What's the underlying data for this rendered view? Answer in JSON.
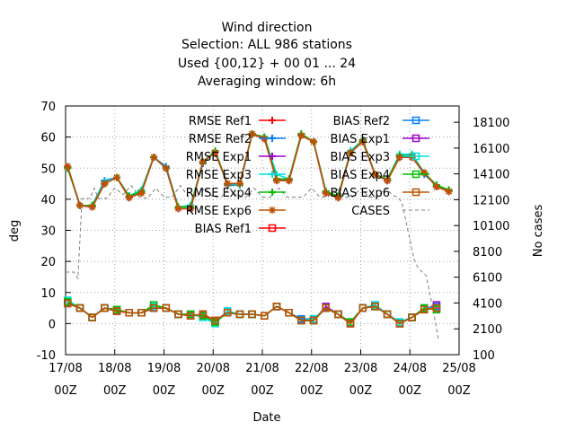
{
  "chart_data": {
    "type": "line",
    "title": [
      "Wind direction",
      "Selection: ALL    986 stations",
      "Used {00,12} + 00 01 ... 24",
      "Averaging window:  6h"
    ],
    "xlabel": "Date",
    "ylabel": "deg",
    "y2label": "No cases",
    "x_ticks": [
      {
        "x": 0,
        "lines": [
          "17/08",
          "00Z"
        ]
      },
      {
        "x": 24,
        "lines": [
          "18/08",
          "00Z"
        ]
      },
      {
        "x": 48,
        "lines": [
          "19/08",
          "00Z"
        ]
      },
      {
        "x": 72,
        "lines": [
          "20/08",
          "00Z"
        ]
      },
      {
        "x": 96,
        "lines": [
          "21/08",
          "00Z"
        ]
      },
      {
        "x": 120,
        "lines": [
          "22/08",
          "00Z"
        ]
      },
      {
        "x": 144,
        "lines": [
          "23/08",
          "00Z"
        ]
      },
      {
        "x": 168,
        "lines": [
          "24/08",
          "00Z"
        ]
      },
      {
        "x": 192,
        "lines": [
          "25/08",
          "00Z"
        ]
      }
    ],
    "x_unit": "hours since 17/08 00Z",
    "xlim": [
      0,
      192
    ],
    "ylim": [
      -10,
      70
    ],
    "y_ticks": [
      -10,
      0,
      10,
      20,
      30,
      40,
      50,
      60,
      70
    ],
    "y2lim": [
      100,
      19360
    ],
    "y2_ticks": [
      100,
      2100,
      4100,
      6100,
      8100,
      10100,
      12100,
      14100,
      16100,
      18100
    ],
    "grid": true,
    "legend_position": "top inside, two columns",
    "series": [
      {
        "name": "RMSE Ref1",
        "color": "#ff0000",
        "marker": "plus",
        "group": "rmse",
        "values": [
          50.5,
          38,
          37.5,
          45,
          47,
          40.5,
          42,
          53.5,
          50,
          37,
          37,
          52,
          55,
          45,
          45,
          61,
          59.5,
          46,
          46,
          60.5,
          58.5,
          42,
          40.5,
          55,
          58.5,
          48,
          46,
          53.5,
          53.5,
          48.5,
          44,
          42.5
        ]
      },
      {
        "name": "RMSE Ref2",
        "color": "#0080ff",
        "marker": "plus",
        "group": "rmse",
        "values": [
          50,
          38,
          38,
          46,
          47,
          41,
          43,
          53.5,
          50.5,
          37.5,
          38,
          51.5,
          55.5,
          44.5,
          44.5,
          61,
          60,
          46.5,
          46.5,
          61,
          58.5,
          42.5,
          41,
          55.5,
          59,
          48,
          46,
          54,
          54,
          48,
          44.5,
          43
        ]
      },
      {
        "name": "RMSE Exp1",
        "color": "#a000d0",
        "marker": "plus",
        "group": "rmse",
        "values": [
          50.5,
          38,
          37.5,
          45,
          47,
          40.5,
          42.5,
          53.5,
          50,
          37,
          37,
          52,
          55,
          45,
          45,
          61,
          59.5,
          46,
          46,
          60.5,
          58.5,
          42,
          40.5,
          55,
          58.5,
          48,
          46,
          53.5,
          53.5,
          48.5,
          44,
          43
        ]
      },
      {
        "name": "RMSE Exp3",
        "color": "#00e0e0",
        "marker": "plus",
        "group": "rmse",
        "values": [
          50,
          38,
          38,
          45.5,
          47,
          41,
          43,
          53.5,
          50,
          37.5,
          38,
          52,
          55.5,
          45,
          44.5,
          61,
          60,
          48,
          46.5,
          61,
          58.5,
          42.5,
          41,
          55.5,
          59,
          48,
          46.5,
          54.5,
          54.5,
          48.5,
          44.5,
          43
        ]
      },
      {
        "name": "RMSE Exp4",
        "color": "#00c000",
        "marker": "plus",
        "group": "rmse",
        "values": [
          50,
          38,
          38,
          45,
          47,
          41,
          42.5,
          53.5,
          50,
          37.5,
          37.5,
          52,
          55.5,
          45,
          45,
          61,
          60,
          46.5,
          46.5,
          61,
          58.5,
          42.5,
          41,
          55,
          59,
          48,
          46.5,
          54,
          54,
          48.5,
          44.5,
          43
        ]
      },
      {
        "name": "RMSE Exp6",
        "color": "#c05000",
        "marker": "star",
        "group": "rmse",
        "values": [
          50.5,
          38,
          37.5,
          45,
          47,
          40.5,
          42,
          53.5,
          50,
          37,
          37,
          52,
          55,
          45,
          45,
          61,
          59.5,
          46,
          46,
          60.5,
          58.5,
          42,
          40.5,
          55,
          58.5,
          48,
          46,
          53.5,
          53.5,
          48.5,
          44,
          42.5
        ]
      },
      {
        "name": "BIAS Ref1",
        "color": "#ff0000",
        "marker": "square",
        "group": "bias",
        "values": [
          6.5,
          5,
          2,
          5,
          4,
          3.5,
          3.5,
          5,
          5,
          3,
          2.5,
          3,
          1,
          3.5,
          3,
          3,
          2.5,
          5.5,
          3.5,
          1,
          1,
          5,
          3,
          0,
          5,
          5.5,
          3,
          0,
          2,
          4.5,
          5
        ]
      },
      {
        "name": "BIAS Ref2",
        "color": "#0080ff",
        "marker": "square",
        "group": "bias",
        "values": [
          7,
          5,
          2,
          5,
          4.5,
          3.5,
          3.5,
          5,
          5,
          3,
          3,
          2.5,
          0.5,
          4,
          3,
          3,
          2.5,
          5.5,
          3.5,
          1.5,
          1.5,
          5,
          3,
          0.5,
          5,
          6,
          3,
          0.5,
          2,
          5,
          5.5
        ]
      },
      {
        "name": "BIAS Exp1",
        "color": "#a000d0",
        "marker": "square",
        "group": "bias",
        "values": [
          6.5,
          5,
          2,
          5,
          4,
          3.5,
          3.5,
          5,
          5,
          3,
          2.5,
          3,
          1,
          3.5,
          3,
          3,
          2.5,
          5.5,
          3.5,
          1,
          1,
          5.5,
          3,
          0,
          5,
          5.5,
          3,
          0,
          2,
          4.5,
          6
        ]
      },
      {
        "name": "BIAS Exp3",
        "color": "#00e0e0",
        "marker": "square",
        "group": "bias",
        "values": [
          7.5,
          5,
          2,
          5,
          4.5,
          3.5,
          3.5,
          5.5,
          5,
          3,
          3,
          2,
          0,
          4,
          3,
          3,
          2.5,
          5.5,
          3.5,
          1,
          1.5,
          5,
          3,
          0.5,
          5,
          6,
          3,
          0.5,
          2,
          5,
          5
        ]
      },
      {
        "name": "BIAS Exp4",
        "color": "#00c000",
        "marker": "square",
        "group": "bias",
        "values": [
          7,
          5,
          2,
          5,
          4.5,
          3.5,
          3.5,
          6,
          5,
          3,
          3,
          2.5,
          0.5,
          3.5,
          3,
          3,
          2.5,
          5.5,
          3.5,
          1,
          1,
          5,
          3,
          0.5,
          5,
          5.5,
          3,
          0,
          2,
          5,
          4.5
        ]
      },
      {
        "name": "BIAS Exp6",
        "color": "#c05000",
        "marker": "square",
        "group": "bias",
        "values": [
          6.5,
          5,
          2,
          5,
          4,
          3.5,
          3.5,
          5,
          5,
          3,
          2.5,
          3,
          1,
          3.5,
          3,
          3,
          2.5,
          5.5,
          3.5,
          1,
          1,
          5,
          3,
          0,
          5,
          5.5,
          3,
          0,
          2,
          4.5,
          5
        ]
      },
      {
        "name": "CASES",
        "color": "#808080",
        "marker": "none",
        "dash": true,
        "axis": "y2",
        "x": [
          0,
          4,
          6,
          8,
          12,
          14,
          16,
          20,
          24,
          28,
          32,
          36,
          40,
          44,
          48,
          52,
          56,
          60,
          64,
          68,
          72,
          76,
          80,
          84,
          88,
          92,
          96,
          100,
          104,
          108,
          112,
          116,
          120,
          124,
          128,
          132,
          136,
          140,
          144,
          148,
          152,
          156,
          160,
          162,
          164,
          166,
          168,
          170,
          172,
          176,
          180,
          182
        ],
        "values": [
          6500,
          6500,
          6000,
          12200,
          12200,
          13000,
          12200,
          12200,
          13000,
          12500,
          13200,
          12300,
          12200,
          13000,
          12300,
          12300,
          13200,
          12300,
          12300,
          13000,
          12300,
          12300,
          13000,
          12300,
          12300,
          13000,
          12300,
          12300,
          13000,
          12300,
          12300,
          12300,
          13000,
          12300,
          12300,
          13000,
          12300,
          12300,
          13000,
          12300,
          12300,
          13000,
          12400,
          12300,
          11900,
          10500,
          9000,
          7500,
          6800,
          6200,
          3000,
          1200
        ]
      }
    ]
  }
}
